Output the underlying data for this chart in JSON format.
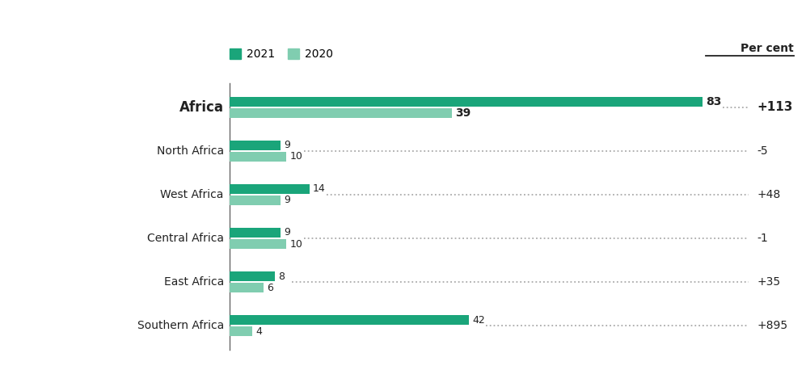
{
  "categories": [
    "Africa",
    "North Africa",
    "West Africa",
    "Central Africa",
    "East Africa",
    "Southern Africa"
  ],
  "values_2021": [
    83,
    9,
    14,
    9,
    8,
    42
  ],
  "values_2020": [
    39,
    10,
    9,
    10,
    6,
    4
  ],
  "pct_change": [
    "+113",
    "-5",
    "+48",
    "-1",
    "+35",
    "+895"
  ],
  "color_2021": "#1aa57a",
  "color_2020": "#80cdb0",
  "bar_height": 0.22,
  "bar_gap": 0.04,
  "dotted_line_color": "#aaaaaa",
  "label_color": "#222222",
  "legend_2021_label": "2021",
  "legend_2020_label": "2020",
  "per_cent_label": "Per cent",
  "background_color": "#ffffff",
  "spine_color": "#666666",
  "bar_label_fontsize": 9,
  "africa_label_fontsize": 10,
  "category_fontsize": 10,
  "africa_category_fontsize": 12,
  "legend_fontsize": 10,
  "pct_fontsize": 10,
  "africa_pct_fontsize": 11,
  "per_cent_fontsize": 10
}
